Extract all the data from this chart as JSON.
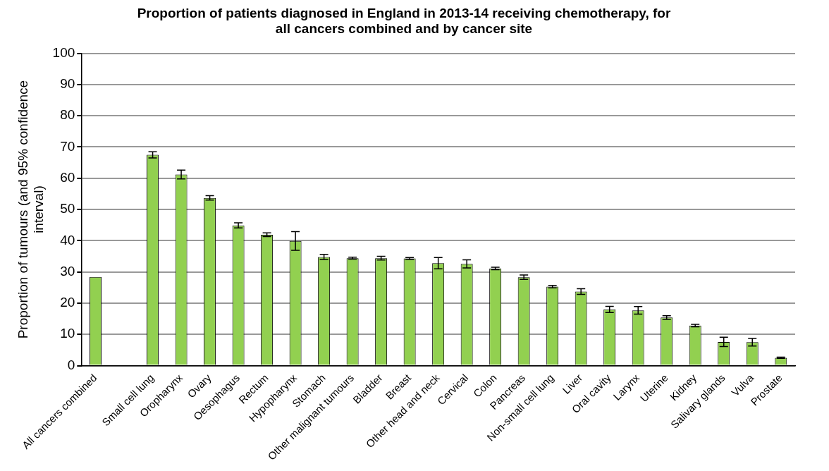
{
  "chart_data": {
    "type": "bar",
    "title": [
      "Proportion of patients diagnosed in England in 2013-14 receiving chemotherapy, for",
      "all cancers combined and by cancer site"
    ],
    "ylabel": [
      "Proportion of tumours (and 95% confidence",
      "interval)"
    ],
    "categories": [
      "All cancers combined",
      null,
      "Small cell lung",
      "Oropharynx",
      "Ovary",
      "Oesophagus",
      "Rectum",
      "Hypopharynx",
      "Stomach",
      "Other malignant tumours",
      "Bladder",
      "Breast",
      "Other head and neck",
      "Cervical",
      "Colon",
      "Pancreas",
      "Non-small cell lung",
      "Liver",
      "Oral cavity",
      "Larynx",
      "Uterine",
      "Kidney",
      "Salivary glands",
      "Vulva",
      "Prostate"
    ],
    "values": [
      28.4,
      null,
      67.5,
      61.2,
      53.7,
      44.9,
      41.9,
      39.9,
      34.8,
      34.4,
      34.4,
      34.3,
      32.8,
      32.6,
      31.1,
      28.3,
      25.3,
      23.7,
      18,
      17.7,
      15.4,
      12.8,
      7.6,
      7.5,
      2.5
    ],
    "errors": [
      null,
      null,
      1,
      1.4,
      0.7,
      0.8,
      0.6,
      3,
      0.8,
      0.3,
      0.6,
      0.3,
      1.8,
      1.3,
      0.4,
      0.7,
      0.4,
      0.9,
      1,
      1.2,
      0.6,
      0.4,
      1.5,
      1.2,
      0.2
    ],
    "color": "#92d050",
    "ylim": [
      0,
      100
    ],
    "yticks": [
      0,
      10,
      20,
      30,
      40,
      50,
      60,
      70,
      80,
      90,
      100
    ],
    "grid": "y",
    "legend": false
  }
}
